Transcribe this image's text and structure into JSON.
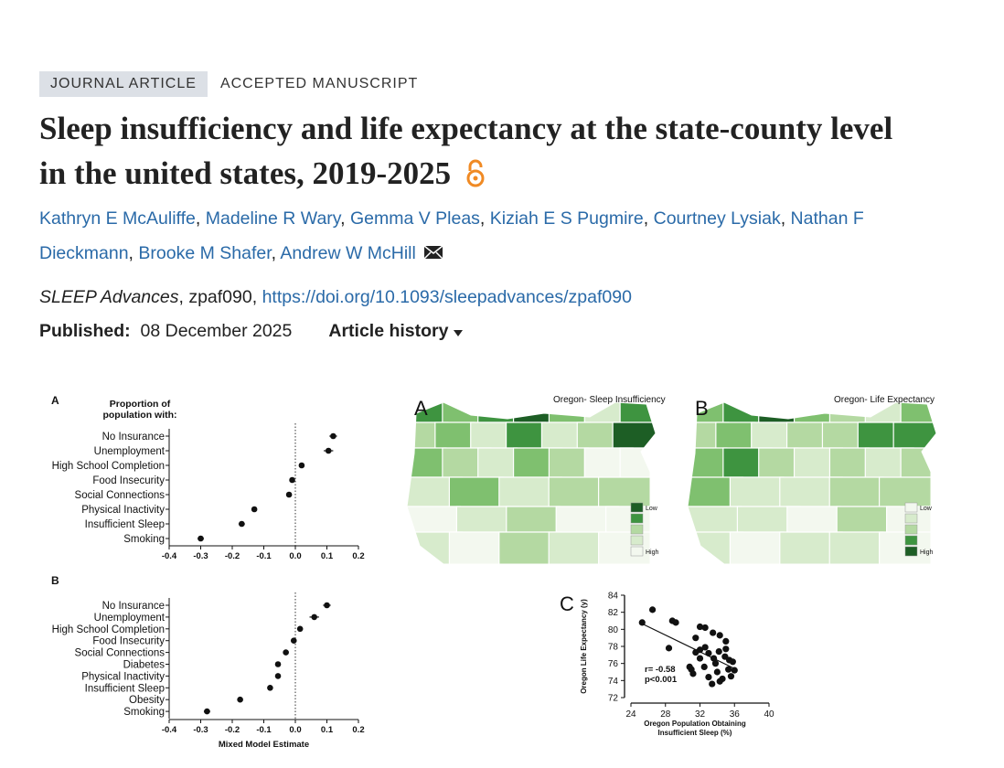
{
  "article": {
    "type_label": "JOURNAL ARTICLE",
    "status": "ACCEPTED MANUSCRIPT",
    "title": "Sleep insufficiency and life expectancy at the state-county level in the united states, 2019-2025",
    "authors": [
      "Kathryn E McAuliffe",
      "Madeline R Wary",
      "Gemma V Pleas",
      "Kiziah E S Pugmire",
      "Courtney Lysiak",
      "Nathan F Dieckmann",
      "Brooke M Shafer",
      "Andrew W McHill"
    ],
    "author_separator": ", ",
    "journal": "SLEEP Advances",
    "citation": ", zpaf090, ",
    "doi": "https://doi.org/10.1093/sleepadvances/zpaf090",
    "published_label": "Published:",
    "published_date": "08 December 2025",
    "history_label": "Article history"
  },
  "figure": {
    "forest_a": {
      "panel": "A",
      "title_lines": [
        "Proportion of",
        "population with:"
      ],
      "categories": [
        "No Insurance",
        "Unemployment",
        "High School Completion",
        "Food Insecurity",
        "Social Connections",
        "Physical Inactivity",
        "Insufficient Sleep",
        "Smoking"
      ],
      "values": [
        0.12,
        0.105,
        0.02,
        -0.01,
        -0.02,
        -0.13,
        -0.17,
        -0.3
      ],
      "errors": [
        0.012,
        0.015,
        0.005,
        0.005,
        0.006,
        0.008,
        0.01,
        0.01
      ],
      "xlim": [
        -0.4,
        0.2
      ],
      "xticks": [
        -0.4,
        -0.3,
        -0.2,
        -0.1,
        {
          "value": 0,
          "label": "0.0"
        },
        0.1,
        0.2
      ]
    },
    "forest_b": {
      "panel": "B",
      "x_label": "Mixed Model Estimate",
      "categories": [
        "No Insurance",
        "Unemployment",
        "High School Completion",
        "Food Insecurity",
        "Social Connections",
        "Diabetes",
        "Physical Inactivity",
        "Insufficient Sleep",
        "Obesity",
        "Smoking"
      ],
      "values": [
        0.1,
        0.06,
        0.015,
        -0.005,
        -0.03,
        -0.055,
        -0.055,
        -0.08,
        -0.175,
        -0.28
      ],
      "errors": [
        0.012,
        0.015,
        0.006,
        0.005,
        0.006,
        0.007,
        0.006,
        0.008,
        0.006,
        0.01
      ],
      "xlim": [
        -0.4,
        0.2
      ],
      "xticks": [
        -0.4,
        -0.3,
        -0.2,
        -0.1,
        {
          "value": 0,
          "label": "0.0"
        },
        0.1,
        0.2
      ]
    },
    "maps": [
      {
        "panel": "A",
        "title": "Oregon- Sleep Insufficiency",
        "legend": [
          "Low",
          "High"
        ]
      },
      {
        "panel": "B",
        "title": "Oregon- Life Expectancy",
        "legend": [
          "Low",
          "High"
        ]
      }
    ],
    "scatter": {
      "panel": "C",
      "y_label": "Oregon Life Expectancy (y)",
      "x_label_lines": [
        "Oregon Population Obtaining",
        "Insufficient Sleep (%)"
      ],
      "annotations": [
        "r= -0.58",
        "p<0.001"
      ],
      "x": [
        25.3,
        26.5,
        28.8,
        29.2,
        28.4,
        32,
        32.6,
        33.5,
        34.3,
        31.5,
        35,
        32,
        32.6,
        33,
        33.6,
        34.2,
        35,
        35.4,
        31.5,
        31,
        31.2,
        32.5,
        33,
        34,
        34.6,
        35.3,
        36,
        33.4,
        34.3,
        32,
        35.8,
        30.8,
        33.8,
        34.9,
        35.6
      ],
      "y": [
        80.8,
        82.3,
        81,
        80.8,
        77.8,
        80.3,
        80.2,
        79.6,
        79.3,
        79,
        78.6,
        77.6,
        77.9,
        77.2,
        76.6,
        77.4,
        77.7,
        76.4,
        77.3,
        75.3,
        74.8,
        75.6,
        74.4,
        75,
        74.2,
        75.3,
        75.2,
        73.6,
        73.9,
        76.6,
        76.2,
        75.6,
        76,
        76.8,
        74.5
      ],
      "trend": {
        "x": [
          25,
          36
        ],
        "y": [
          80.8,
          75.4
        ]
      },
      "xlim": [
        24,
        40
      ],
      "xticks": [
        24,
        28,
        32,
        36,
        40
      ],
      "ylim": [
        72,
        84
      ],
      "yticks": [
        72,
        74,
        76,
        78,
        80,
        82,
        84
      ]
    }
  }
}
